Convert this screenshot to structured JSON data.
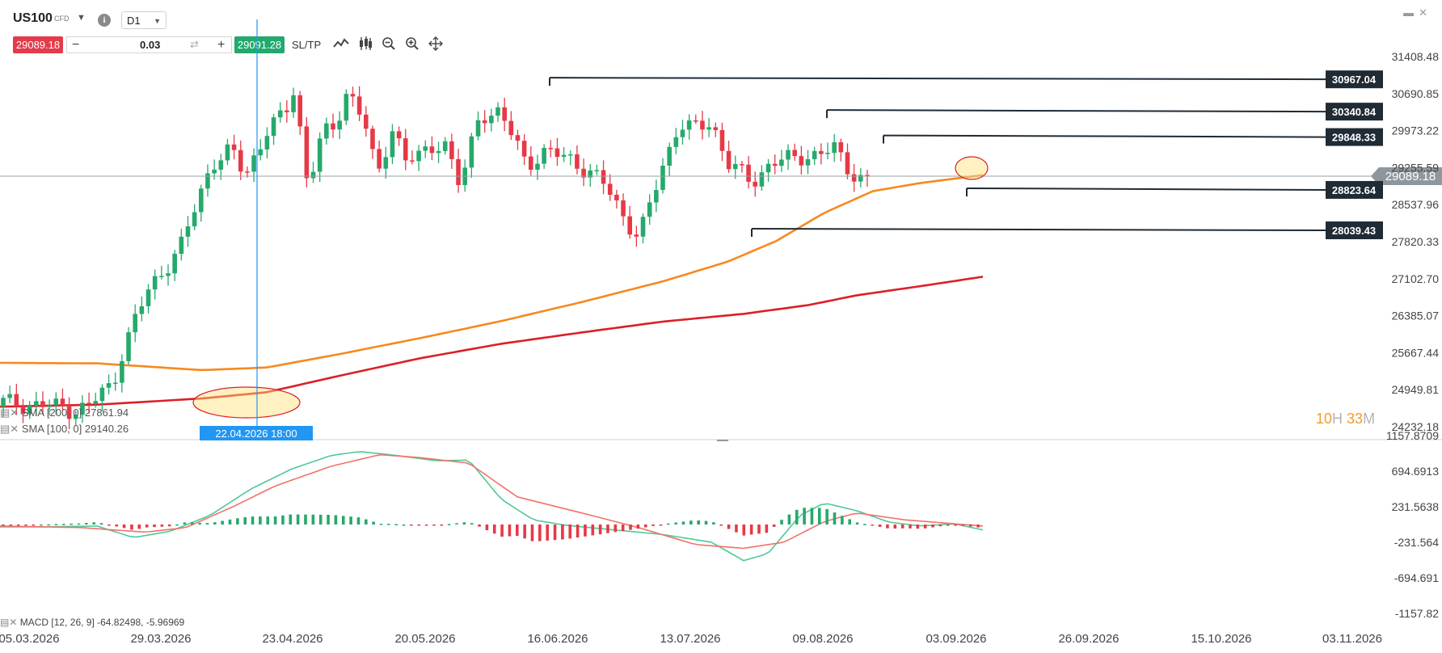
{
  "toolbar": {
    "symbol": "US100",
    "symbol_type": "CFD",
    "timeframe": "D1",
    "sell_price": "29089.18",
    "buy_price": "29091.28",
    "quantity": "0.03",
    "sltp_label": "SL/TP"
  },
  "icons": {
    "info": "info-icon",
    "line_chart": "line-chart-icon",
    "candles": "candlestick-icon",
    "zoom_out": "zoom-out-icon",
    "zoom_in": "zoom-in-icon",
    "move": "move-icon"
  },
  "timer": {
    "hours": "10",
    "h_unit": "H",
    "minutes": "33",
    "m_unit": "M"
  },
  "legend": {
    "sma1": "SMA [200, 0] 27861.94",
    "sma2": "SMA [100, 0] 29140.26",
    "macd": "MACD [12, 26, 9] -64.82498, -5.96969"
  },
  "cursor_label": "22.04.2026 18:00",
  "colors": {
    "up": "#26a96c",
    "down": "#e63946",
    "sma_fast": "#f6891f",
    "sma_slow": "#dc1f26",
    "macd_line": "#4fc99a",
    "signal_line": "#f0726a",
    "level": "#1f2b35",
    "accent": "#2196f3"
  },
  "chart_data": {
    "type": "candlestick",
    "y_axis": {
      "ticks": [
        31408.48,
        30690.85,
        29973.22,
        29255.59,
        28537.96,
        27820.33,
        27102.7,
        26385.07,
        25667.44,
        24949.81,
        24232.18
      ],
      "ylim": [
        24232.18,
        31408.48
      ]
    },
    "x_axis": {
      "ticks": [
        "05.03.2026",
        "29.03.2026",
        "23.04.2026",
        "20.05.2026",
        "16.06.2026",
        "13.07.2026",
        "09.08.2026",
        "03.09.2026",
        "26.09.2026",
        "15.10.2026",
        "03.11.2026"
      ]
    },
    "current_price": 29089.18,
    "price_levels": [
      {
        "value": 30967.04,
        "label": "30967.04"
      },
      {
        "value": 30340.84,
        "label": "30340.84"
      },
      {
        "value": 29848.33,
        "label": "29848.33"
      },
      {
        "value": 28823.64,
        "label": "28823.64"
      },
      {
        "value": 28039.43,
        "label": "28039.43"
      }
    ],
    "macd": {
      "ticks": [
        1157.8709,
        694.6913,
        231.5638,
        -231.564,
        -694.691,
        -1157.82
      ],
      "ylim": [
        -1157.82,
        1157.8709
      ]
    }
  }
}
